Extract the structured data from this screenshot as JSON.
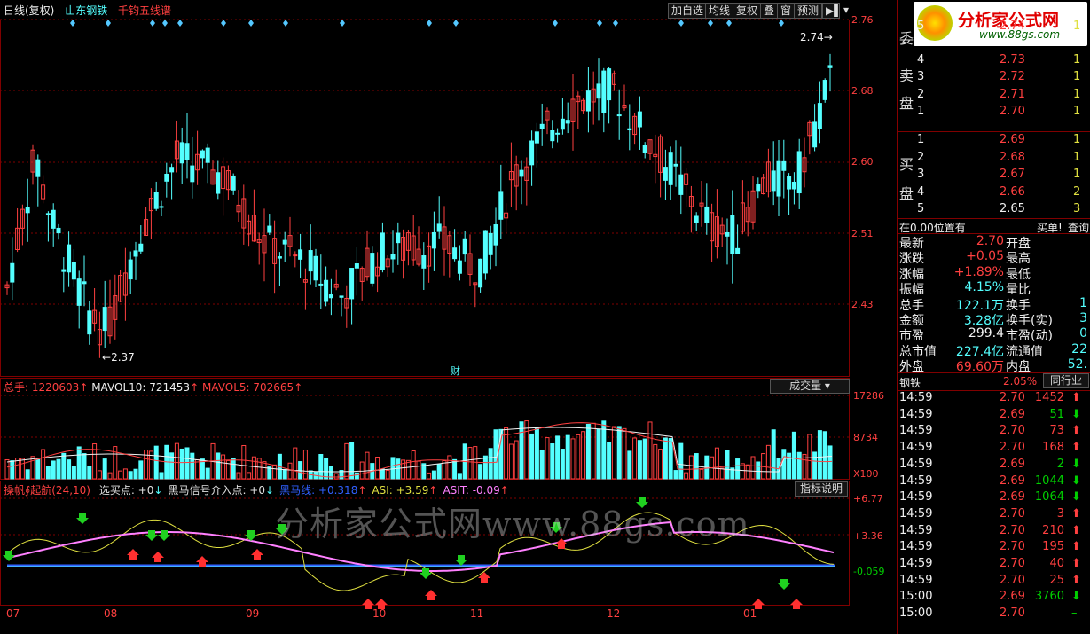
{
  "header": {
    "period": "日线(复权)",
    "stock": "山东钢铁",
    "indicator": "千钧五线谱"
  },
  "toolbar": {
    "buttons": [
      "加自选",
      "均线",
      "复权",
      "叠",
      "窗",
      "预测"
    ]
  },
  "price_axis": [
    "2.76",
    "2.68",
    "2.60",
    "2.51",
    "2.43"
  ],
  "annotations": {
    "high": "2.74",
    "low": "2.37",
    "cai": "财"
  },
  "volume": {
    "total": "总手: 1220603",
    "mavol10": "MAVOL10: 721453",
    "mavol5": "MAVOL5: 702665",
    "axis": [
      "17286",
      "8734",
      "X100"
    ],
    "selector": "成交量"
  },
  "indicator_panel": {
    "title": "操帆∮起航(24,10)",
    "items": [
      {
        "text": "选买点: +0",
        "color": "#e0e0e0"
      },
      {
        "text": "黑马信号介入点: +0",
        "color": "#e0e0e0"
      },
      {
        "text": "黑马线: +0.318",
        "color": "#3060ff"
      },
      {
        "text": "ASI: +3.59",
        "color": "#e0e040"
      },
      {
        "text": "ASIT: -0.09",
        "color": "#ff80ff"
      }
    ],
    "axis": [
      "+6.77",
      "+3.36",
      "-0.059"
    ],
    "help": "指标说明"
  },
  "dates": [
    "07",
    "08",
    "09",
    "10",
    "11",
    "12",
    "01"
  ],
  "watermark": "分析家公式网www.88gs.com",
  "logo": {
    "cn": "分析家公式网",
    "url": "www.88gs.com"
  },
  "order_book": {
    "sell_label": [
      "委",
      "卖",
      "盘"
    ],
    "buy_label": [
      "买",
      "盘"
    ],
    "sell": [
      {
        "n": "5",
        "price": "2.74",
        "vol": "1"
      },
      {
        "n": "4",
        "price": "2.73",
        "vol": "1"
      },
      {
        "n": "3",
        "price": "2.72",
        "vol": "1"
      },
      {
        "n": "2",
        "price": "2.71",
        "vol": "1"
      },
      {
        "n": "1",
        "price": "2.70",
        "vol": "1"
      }
    ],
    "buy": [
      {
        "n": "1",
        "price": "2.69",
        "vol": "1"
      },
      {
        "n": "2",
        "price": "2.68",
        "vol": "1"
      },
      {
        "n": "3",
        "price": "2.67",
        "vol": "1"
      },
      {
        "n": "4",
        "price": "2.66",
        "vol": "2"
      },
      {
        "n": "5",
        "price": "2.65",
        "vol": "3"
      }
    ]
  },
  "position": {
    "text": "在0.00位置有",
    "buy1": "买单!",
    "query": "查询"
  },
  "quote": [
    {
      "k": "最新",
      "v": "2.70",
      "vc": "red",
      "k2": "开盘"
    },
    {
      "k": "涨跌",
      "v": "+0.05",
      "vc": "red",
      "k2": "最高"
    },
    {
      "k": "涨幅",
      "v": "+1.89%",
      "vc": "red",
      "k2": "最低"
    },
    {
      "k": "振幅",
      "v": "4.15%",
      "vc": "cyan",
      "k2": "量比"
    },
    {
      "k": "总手",
      "v": "122.1万",
      "vc": "cyan",
      "k2": "换手",
      "v2": "1"
    },
    {
      "k": "金额",
      "v": "3.28亿",
      "vc": "cyan",
      "k2": "换手(实)",
      "v2": "3"
    },
    {
      "k": "市盈",
      "v": "299.4",
      "vc": "white",
      "k2": "市盈(动)",
      "v2": "0"
    },
    {
      "k": "总市值",
      "v": "227.4亿",
      "vc": "cyan",
      "k2": "流通值",
      "v2": "22"
    },
    {
      "k": "外盘",
      "v": "69.60万",
      "vc": "red",
      "k2": "内盘",
      "v2": "52."
    }
  ],
  "sector": {
    "name": "钢铁",
    "pct": "2.05%",
    "btn": "同行业"
  },
  "ticks": [
    {
      "t": "14:59",
      "p": "2.70",
      "pc": "red",
      "v": "1452",
      "vc": "red",
      "d": "up"
    },
    {
      "t": "14:59",
      "p": "2.69",
      "pc": "red",
      "v": "51",
      "vc": "green",
      "d": "down"
    },
    {
      "t": "14:59",
      "p": "2.70",
      "pc": "red",
      "v": "73",
      "vc": "red",
      "d": "up"
    },
    {
      "t": "14:59",
      "p": "2.70",
      "pc": "red",
      "v": "168",
      "vc": "red",
      "d": "up"
    },
    {
      "t": "14:59",
      "p": "2.69",
      "pc": "red",
      "v": "2",
      "vc": "green",
      "d": "down"
    },
    {
      "t": "14:59",
      "p": "2.69",
      "pc": "red",
      "v": "1044",
      "vc": "green",
      "d": "down"
    },
    {
      "t": "14:59",
      "p": "2.69",
      "pc": "red",
      "v": "1064",
      "vc": "green",
      "d": "down"
    },
    {
      "t": "14:59",
      "p": "2.70",
      "pc": "red",
      "v": "3",
      "vc": "red",
      "d": "up"
    },
    {
      "t": "14:59",
      "p": "2.70",
      "pc": "red",
      "v": "210",
      "vc": "red",
      "d": "up"
    },
    {
      "t": "14:59",
      "p": "2.70",
      "pc": "red",
      "v": "195",
      "vc": "red",
      "d": "up"
    },
    {
      "t": "14:59",
      "p": "2.70",
      "pc": "red",
      "v": "40",
      "vc": "red",
      "d": "up"
    },
    {
      "t": "14:59",
      "p": "2.70",
      "pc": "red",
      "v": "25",
      "vc": "red",
      "d": "up"
    },
    {
      "t": "15:00",
      "p": "2.69",
      "pc": "red",
      "v": "3760",
      "vc": "green",
      "d": "down"
    },
    {
      "t": "15:00",
      "p": "2.70",
      "pc": "red",
      "v": "",
      "vc": "green",
      "d": "dash"
    }
  ],
  "colors": {
    "up": "#ff4040",
    "down": "#54ffff",
    "grid": "#800000",
    "ma_yellow": "#e0e040",
    "ma_pink": "#ff80ff",
    "ma_blue": "#3060ff"
  }
}
